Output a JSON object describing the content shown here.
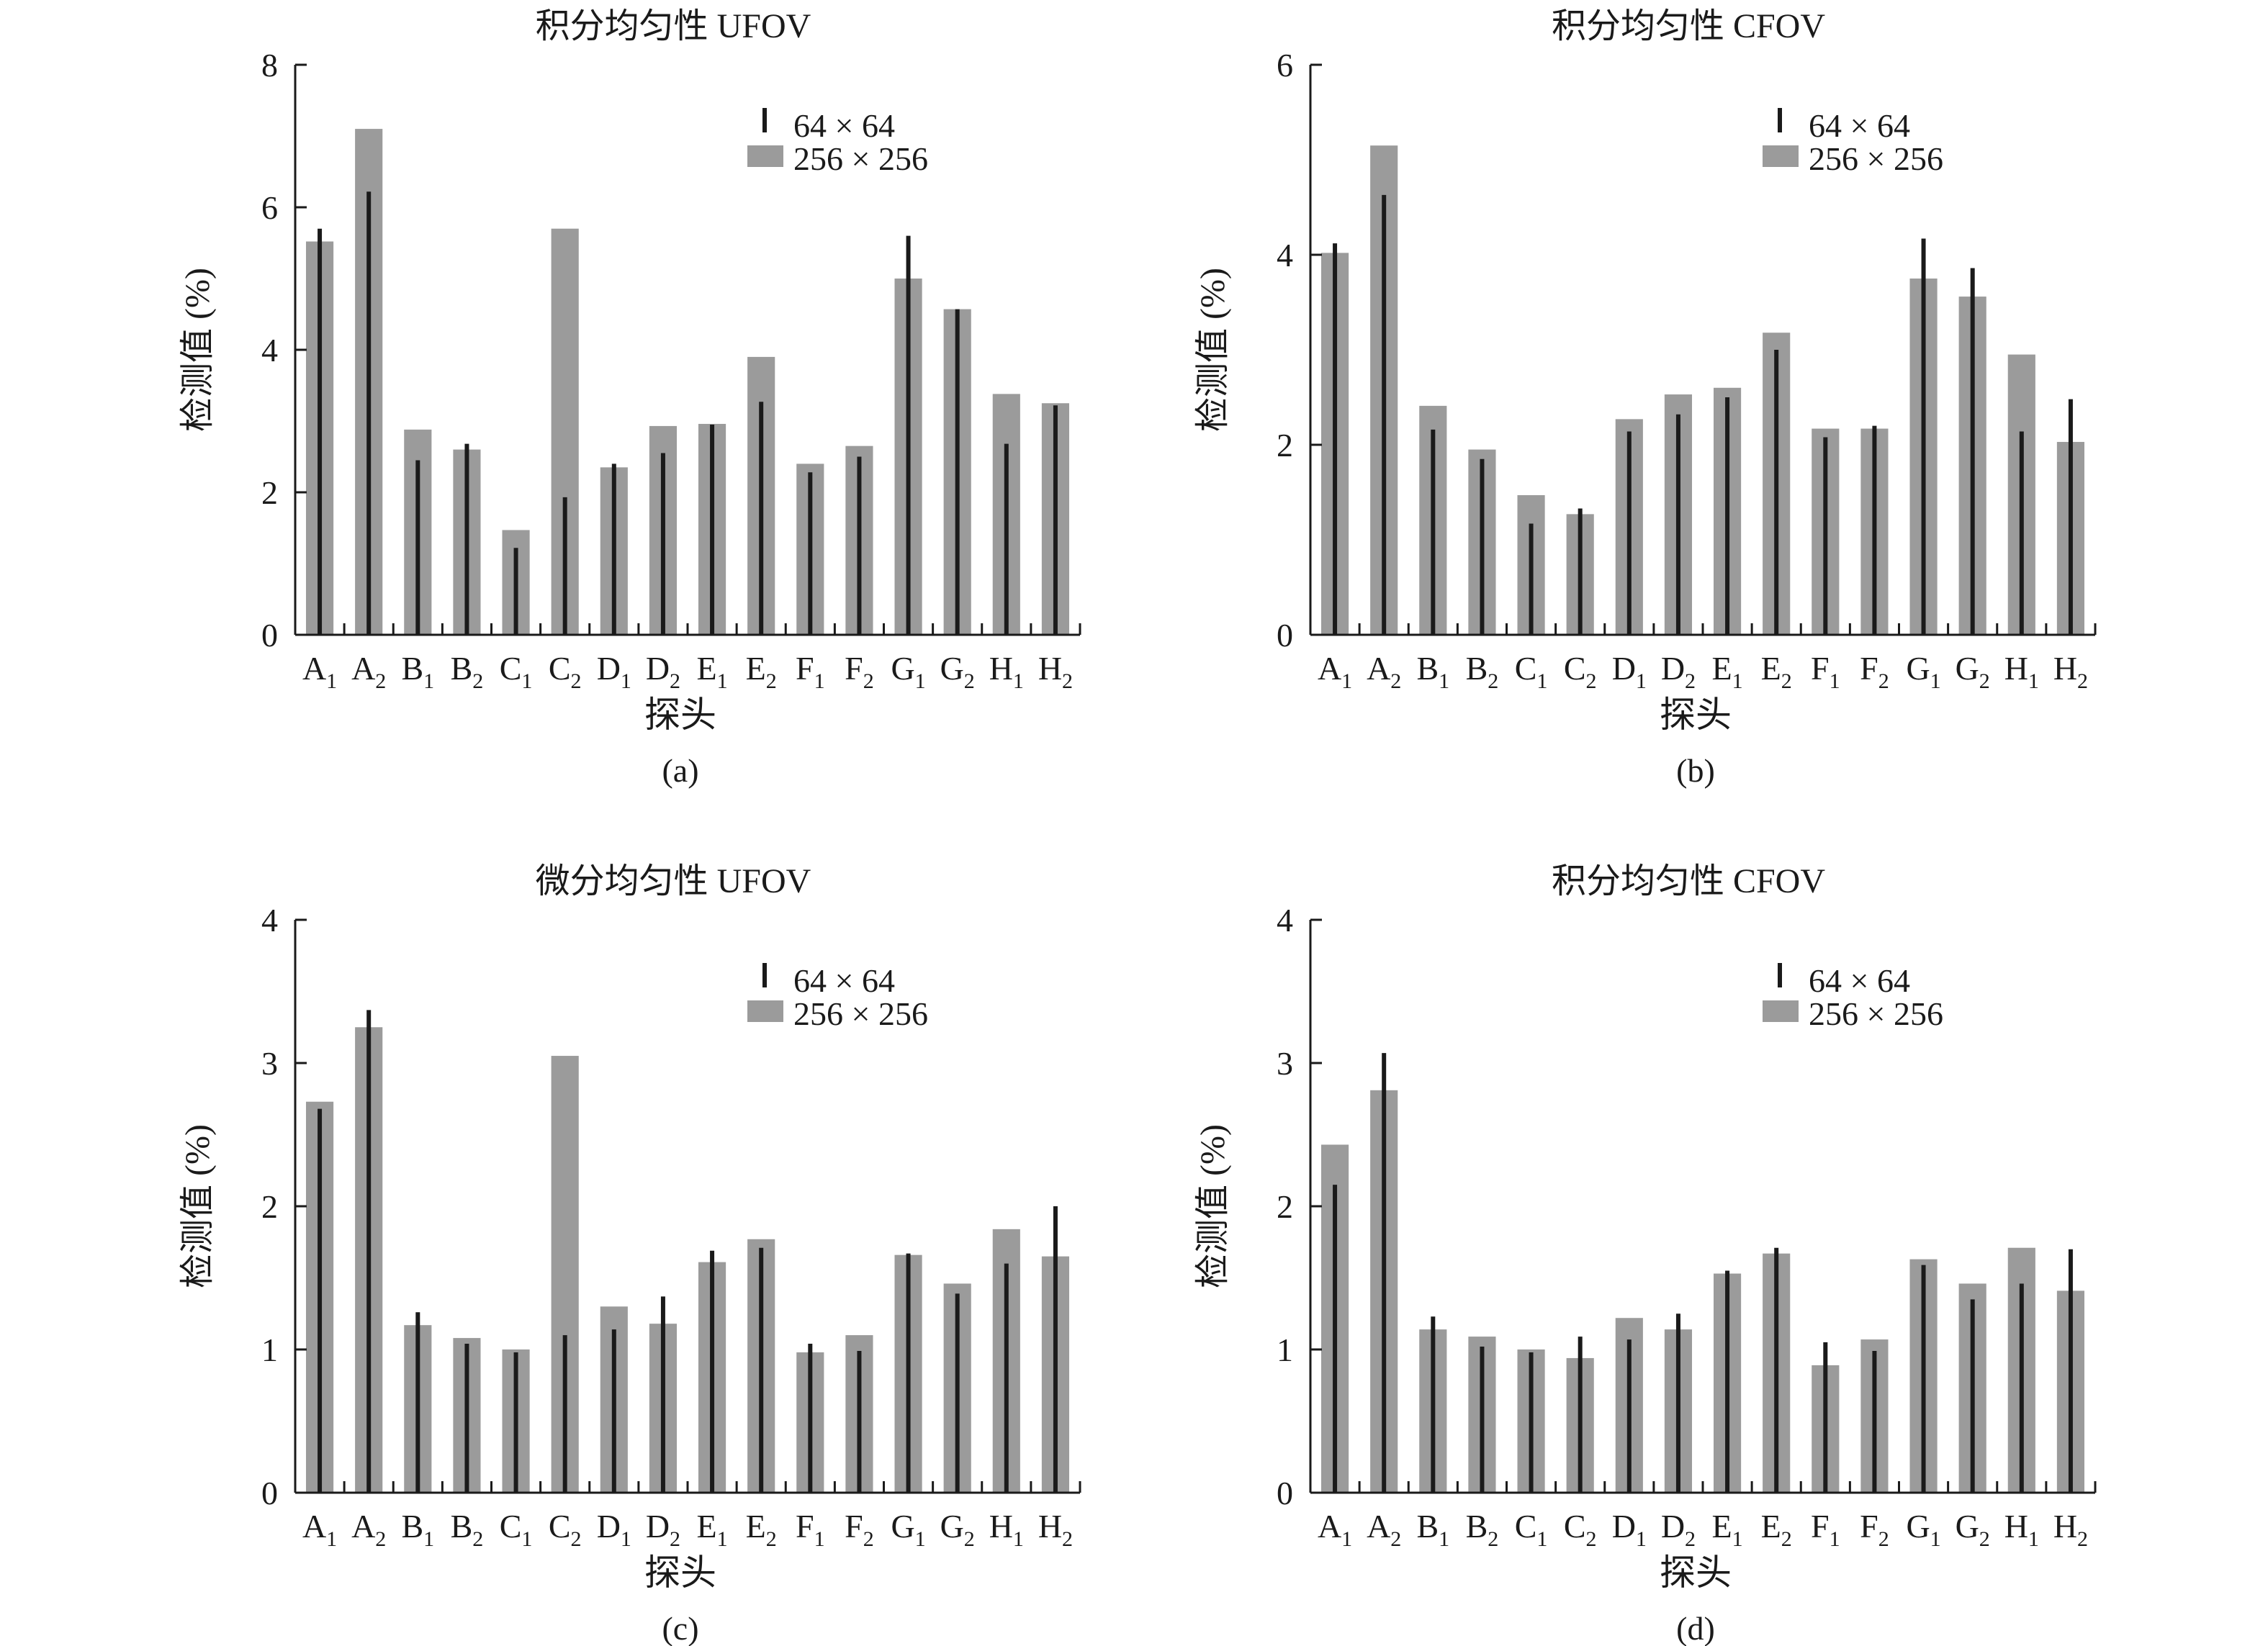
{
  "colors": {
    "bar_256": "#9b9b9b",
    "bar_64": "#1a1a1a",
    "axis": "#1a1a1a"
  },
  "categories": [
    {
      "letter": "A",
      "sub": "1"
    },
    {
      "letter": "A",
      "sub": "2"
    },
    {
      "letter": "B",
      "sub": "1"
    },
    {
      "letter": "B",
      "sub": "2"
    },
    {
      "letter": "C",
      "sub": "1"
    },
    {
      "letter": "C",
      "sub": "2"
    },
    {
      "letter": "D",
      "sub": "1"
    },
    {
      "letter": "D",
      "sub": "2"
    },
    {
      "letter": "E",
      "sub": "1"
    },
    {
      "letter": "E",
      "sub": "2"
    },
    {
      "letter": "F",
      "sub": "1"
    },
    {
      "letter": "F",
      "sub": "2"
    },
    {
      "letter": "G",
      "sub": "1"
    },
    {
      "letter": "G",
      "sub": "2"
    },
    {
      "letter": "H",
      "sub": "1"
    },
    {
      "letter": "H",
      "sub": "2"
    }
  ],
  "chart_data": [
    {
      "type": "bar",
      "panel_label": "(a)",
      "title": "积分均匀性 UFOV",
      "xlabel": "探头",
      "ylabel": "检测值 (%)",
      "ylim": [
        0,
        8
      ],
      "yticks": [
        "0",
        "2",
        "4",
        "6",
        "8"
      ],
      "legend": {
        "series64": "64 × 64",
        "series256": "256 × 256",
        "position": "top-right"
      },
      "series": [
        {
          "name": "256 × 256",
          "style": "bar",
          "values": [
            5.52,
            7.1,
            2.88,
            2.6,
            1.47,
            5.7,
            2.35,
            2.93,
            2.96,
            3.9,
            2.4,
            2.65,
            5.0,
            4.57,
            3.38,
            3.25
          ]
        },
        {
          "name": "64 × 64",
          "style": "line",
          "values": [
            5.7,
            6.22,
            2.45,
            2.68,
            1.22,
            1.93,
            2.4,
            2.55,
            2.95,
            3.27,
            2.28,
            2.5,
            5.6,
            4.57,
            2.68,
            3.22
          ]
        }
      ]
    },
    {
      "type": "bar",
      "panel_label": "(b)",
      "title": "积分均匀性 CFOV",
      "xlabel": "探头",
      "ylabel": "检测值 (%)",
      "ylim": [
        0,
        6
      ],
      "yticks": [
        "0",
        "2",
        "4",
        "6"
      ],
      "legend": {
        "series64": "64 × 64",
        "series256": "256 × 256",
        "position": "top-right"
      },
      "series": [
        {
          "name": "256 × 256",
          "style": "bar",
          "values": [
            4.02,
            5.15,
            2.41,
            1.95,
            1.47,
            1.27,
            2.27,
            2.53,
            2.6,
            3.18,
            2.17,
            2.17,
            3.75,
            3.56,
            2.95,
            2.03
          ]
        },
        {
          "name": "64 × 64",
          "style": "line",
          "values": [
            4.12,
            4.63,
            2.16,
            1.85,
            1.17,
            1.33,
            2.14,
            2.32,
            2.5,
            3.0,
            2.08,
            2.2,
            4.17,
            3.86,
            2.14,
            2.48
          ]
        }
      ]
    },
    {
      "type": "bar",
      "panel_label": "(c)",
      "title": "微分均匀性 UFOV",
      "xlabel": "探头",
      "ylabel": "检测值 (%)",
      "ylim": [
        0,
        4
      ],
      "yticks": [
        "0",
        "1",
        "2",
        "3",
        "4"
      ],
      "legend": {
        "series64": "64 × 64",
        "series256": "256 × 256",
        "position": "top-right"
      },
      "series": [
        {
          "name": "256 × 256",
          "style": "bar",
          "values": [
            2.73,
            3.25,
            1.17,
            1.08,
            1.0,
            3.05,
            1.3,
            1.18,
            1.61,
            1.77,
            0.98,
            1.1,
            1.66,
            1.46,
            1.84,
            1.65
          ]
        },
        {
          "name": "64 × 64",
          "style": "line",
          "values": [
            2.68,
            3.37,
            1.26,
            1.04,
            0.98,
            1.1,
            1.14,
            1.37,
            1.69,
            1.71,
            1.04,
            0.99,
            1.67,
            1.39,
            1.6,
            2.0
          ]
        }
      ]
    },
    {
      "type": "bar",
      "panel_label": "(d)",
      "title": "积分均匀性 CFOV",
      "xlabel": "探头",
      "ylabel": "检测值 (%)",
      "ylim": [
        0,
        4
      ],
      "yticks": [
        "0",
        "1",
        "2",
        "3",
        "4"
      ],
      "legend": {
        "series64": "64 × 64",
        "series256": "256 × 256",
        "position": "top-right"
      },
      "series": [
        {
          "name": "256 × 256",
          "style": "bar",
          "values": [
            2.43,
            2.81,
            1.14,
            1.09,
            1.0,
            0.94,
            1.22,
            1.14,
            1.53,
            1.67,
            0.89,
            1.07,
            1.63,
            1.46,
            1.71,
            1.41
          ]
        },
        {
          "name": "64 × 64",
          "style": "line",
          "values": [
            2.15,
            3.07,
            1.23,
            1.02,
            0.98,
            1.09,
            1.07,
            1.25,
            1.55,
            1.71,
            1.05,
            0.99,
            1.59,
            1.35,
            1.46,
            1.7
          ]
        }
      ]
    }
  ]
}
